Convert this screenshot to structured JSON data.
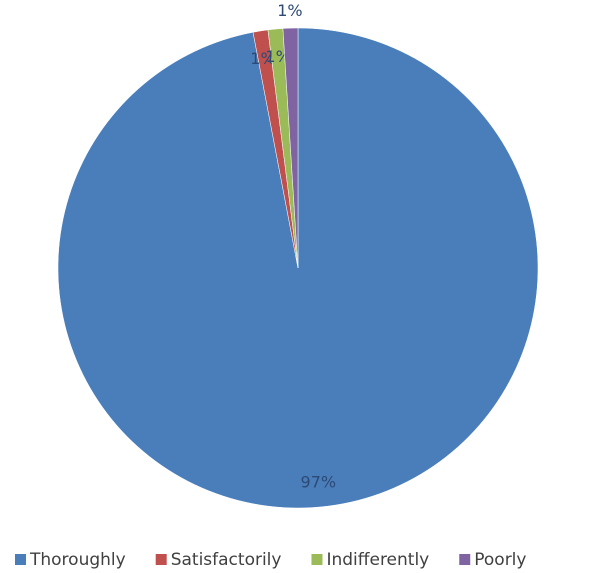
{
  "chart_data": {
    "type": "pie",
    "categories": [
      "Thoroughly",
      "Satisfactorily",
      "Indifferently",
      "Poorly"
    ],
    "values": [
      97,
      1,
      1,
      1
    ],
    "value_labels": [
      "97%",
      "1%",
      "1%",
      "1%"
    ],
    "colors": [
      "#4a7ebb",
      "#c0504d",
      "#9bbb59",
      "#8064a2"
    ],
    "legend": "bottom"
  }
}
